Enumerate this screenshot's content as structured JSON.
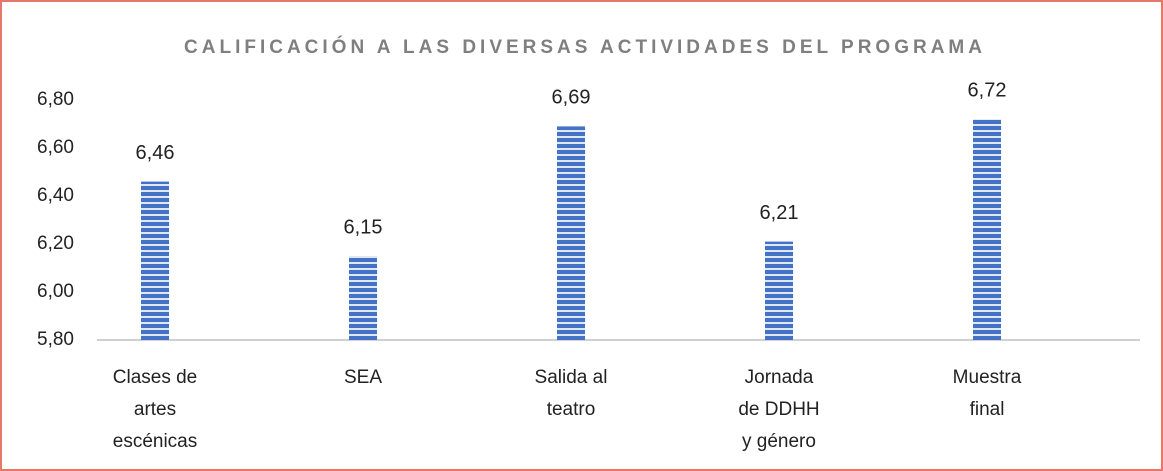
{
  "chart_data": {
    "type": "bar",
    "title": "CALIFICACIÓN A LAS DIVERSAS ACTIVIDADES DEL PROGRAMA",
    "categories": [
      [
        "Clases de",
        "artes",
        "escénicas"
      ],
      [
        "SEA"
      ],
      [
        "Salida al",
        "teatro"
      ],
      [
        "Jornada",
        "de DDHH",
        "y género"
      ],
      [
        "Muestra",
        "final"
      ]
    ],
    "values": [
      6.46,
      6.15,
      6.69,
      6.21,
      6.72
    ],
    "value_labels": [
      "6,46",
      "6,15",
      "6,69",
      "6,21",
      "6,72"
    ],
    "color": "#4472c4",
    "ylim": [
      5.8,
      6.8
    ],
    "yticks": [
      {
        "value": 5.8,
        "label": "5,80"
      },
      {
        "value": 6.0,
        "label": "6,00"
      },
      {
        "value": 6.2,
        "label": "6,20"
      },
      {
        "value": 6.4,
        "label": "6,40"
      },
      {
        "value": 6.6,
        "label": "6,60"
      },
      {
        "value": 6.8,
        "label": "6,80"
      }
    ],
    "grid": false
  }
}
